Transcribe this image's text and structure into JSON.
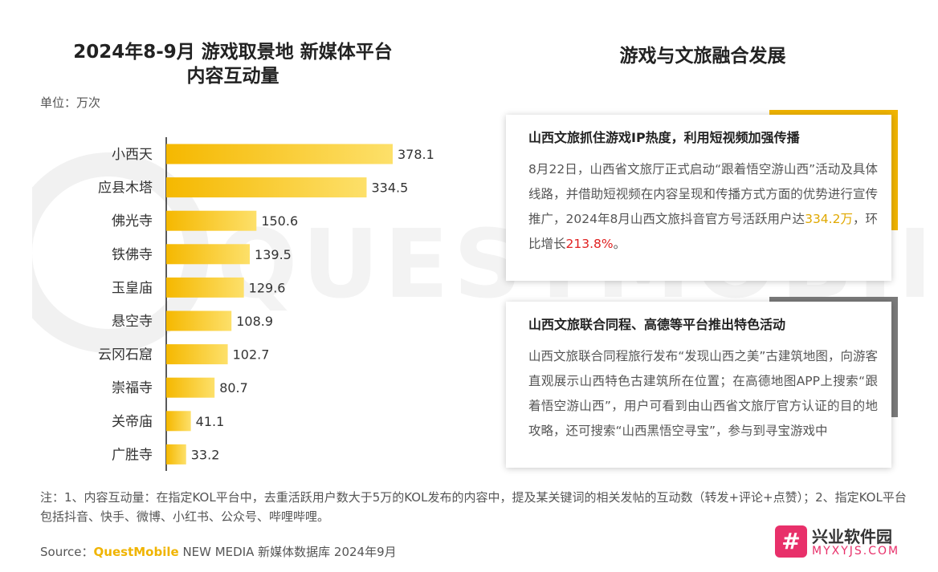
{
  "watermark": {
    "text": "QUESTMOBILE"
  },
  "left": {
    "title_line1": "2024年8-9月 游戏取景地 新媒体平台",
    "title_line2": "内容互动量",
    "unit": "单位：万次"
  },
  "chart_data": {
    "type": "bar",
    "orientation": "horizontal",
    "title": "2024年8-9月 游戏取景地 新媒体平台内容互动量",
    "unit": "单位：万次",
    "categories": [
      "小西天",
      "应县木塔",
      "佛光寺",
      "铁佛寺",
      "玉皇庙",
      "悬空寺",
      "云冈石窟",
      "崇福寺",
      "关帝庙",
      "广胜寺"
    ],
    "values": [
      378.1,
      334.5,
      150.6,
      139.5,
      129.6,
      108.9,
      102.7,
      80.7,
      41.1,
      33.2
    ],
    "value_labels": [
      "378.1",
      "334.5",
      "150.6",
      "139.5",
      "129.6",
      "108.9",
      "102.7",
      "80.7",
      "41.1",
      "33.2"
    ],
    "bar_color": "#f5b800",
    "bar_color_light": "#fde06a",
    "xlim": [
      0,
      400
    ],
    "grid": false
  },
  "right": {
    "title": "游戏与文旅融合发展",
    "card1": {
      "title": "山西文旅抓住游戏IP热度，利用短视频加强传播",
      "body_before": "8月22日，山西省文旅厅正式启动“跟着悟空游山西”活动及具体线路，并借助短视频在内容呈现和传播方式方面的优势进行宣传推广，2024年8月山西文旅抖音官方号活跃用户达",
      "highlight1": "334.2万",
      "body_middle": "，环比增长",
      "highlight2": "213.8%",
      "body_after": "。"
    },
    "card2": {
      "title": "山西文旅联合同程、高德等平台推出特色活动",
      "body": "山西文旅联合同程旅行发布“发现山西之美”古建筑地图，向游客直观展示山西特色古建筑所在位置；在高德地图APP上搜索“跟着悟空游山西”，用户可看到由山西省文旅厅官方认证的目的地攻略，还可搜索“山西黑悟空寻宝”，参与到寻宝游戏中"
    }
  },
  "footer": {
    "note": "注：1、内容互动量：在指定KOL平台中，去重活跃用户数大于5万的KOL发布的内容中，提及某关键词的相关发帖的互动数（转发+评论+点赞）；2、指定KOL平台包括抖音、快手、微博、小红书、公众号、哔哩哔哩。",
    "source_label": "Source：",
    "source_brand": "QuestMobile",
    "source_rest": " NEW MEDIA 新媒体数据库 2024年9月"
  },
  "logo": {
    "glyph": "#",
    "cn": "兴业软件园",
    "en": "MYXYJS.COM"
  },
  "colors": {
    "accent_gold": "#f0b400",
    "accent_gray": "#7a7a7a",
    "highlight_red": "#e02020",
    "logo_pink": "#e8306a"
  }
}
